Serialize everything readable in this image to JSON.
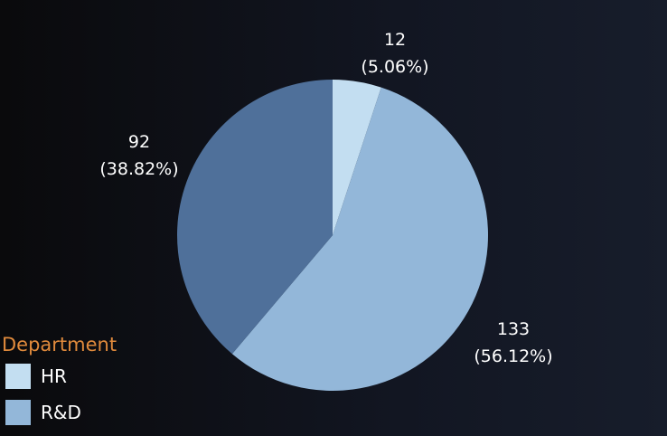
{
  "chart_data": {
    "type": "pie",
    "legend_title": "Department",
    "legend_position": "bottom-left",
    "slices": [
      {
        "name": "HR",
        "value": 12,
        "percent_label": "(5.06%)",
        "value_label": "12",
        "color": "#c3def1"
      },
      {
        "name": "R&D",
        "value": 133,
        "percent_label": "(56.12%)",
        "value_label": "133",
        "color": "#93b7d9"
      },
      {
        "name": "",
        "value": 92,
        "percent_label": "(38.82%)",
        "value_label": "92",
        "color": "#4f709a"
      }
    ]
  },
  "legend": {
    "title": "Department",
    "items": [
      {
        "label": "HR",
        "color": "#c3def1"
      },
      {
        "label": "R&D",
        "color": "#93b7d9"
      }
    ]
  }
}
